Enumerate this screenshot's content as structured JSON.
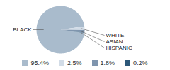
{
  "chart_data": {
    "type": "pie",
    "categories": [
      "BLACK",
      "WHITE",
      "ASIAN",
      "HISPANIC"
    ],
    "values": [
      95.4,
      2.5,
      1.8,
      0.2
    ],
    "value_labels": [
      "95.4%",
      "2.5%",
      "1.8%",
      "0.2%"
    ],
    "colors": [
      "#a9bbcc",
      "#d2dce7",
      "#7f95ae",
      "#2d5879"
    ],
    "legend": "bottom"
  }
}
